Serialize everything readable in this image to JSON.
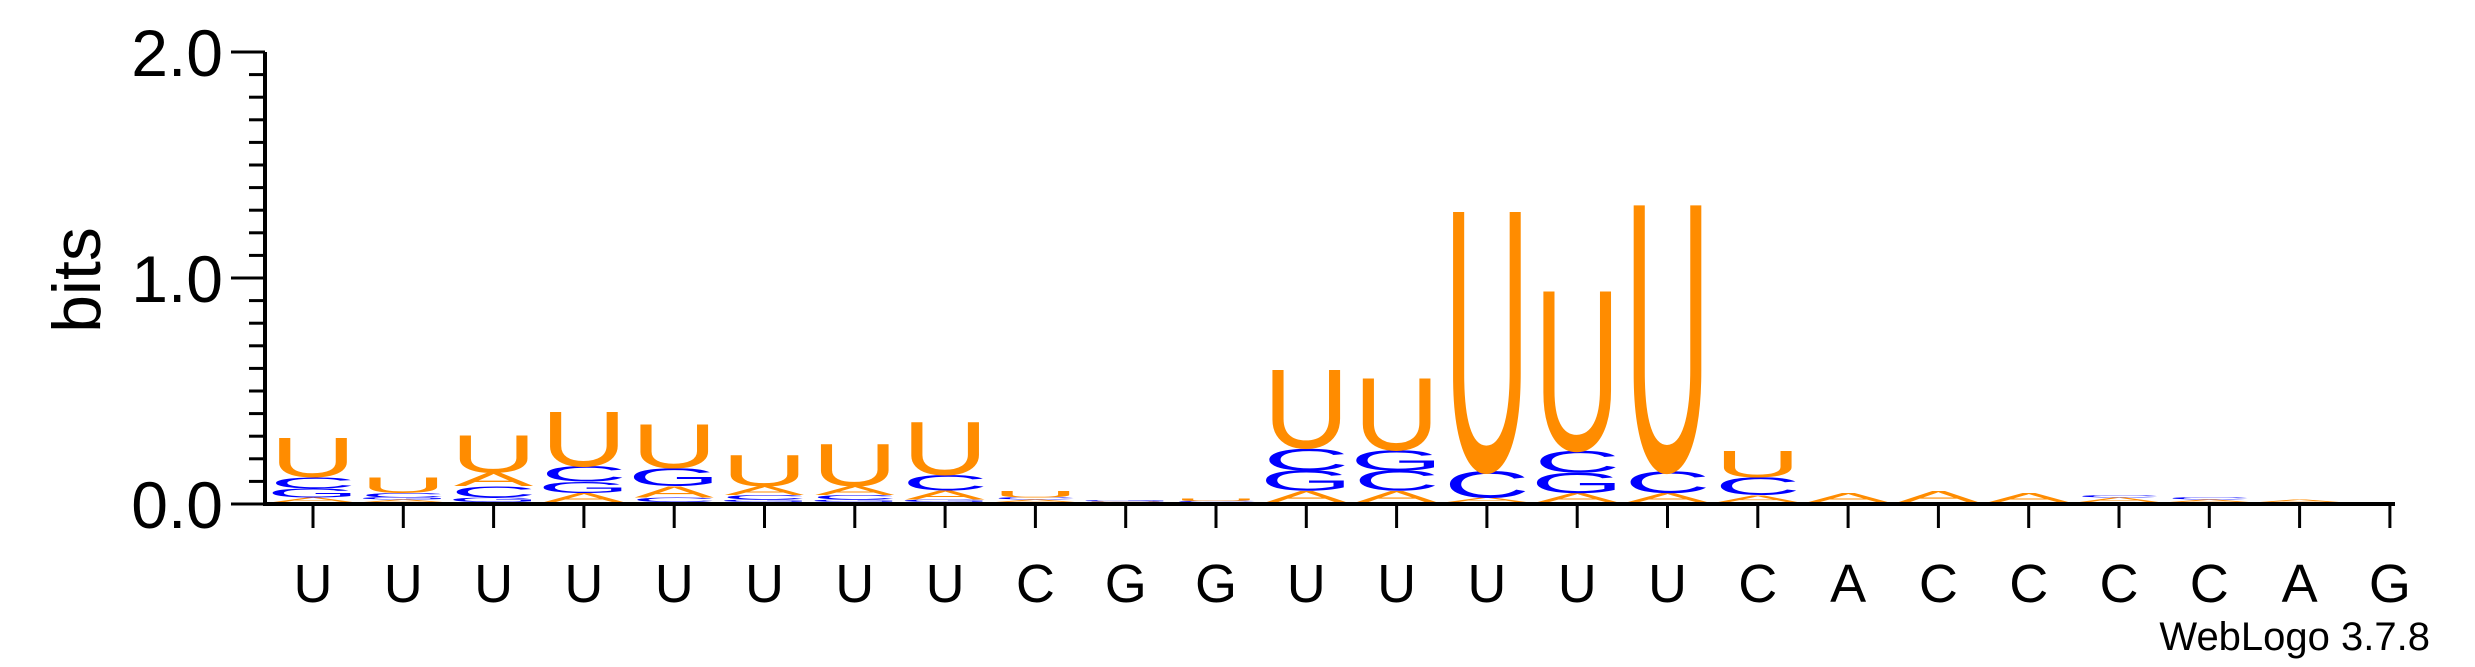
{
  "chart_data": {
    "type": "sequence-logo",
    "ylabel": "bits",
    "ylim": [
      0,
      2.0
    ],
    "yticks": [
      "0.0",
      "1.0",
      "2.0"
    ],
    "xticks": [
      "U",
      "U",
      "U",
      "U",
      "U",
      "U",
      "U",
      "U",
      "C",
      "G",
      "G",
      "U",
      "U",
      "U",
      "U",
      "U",
      "C",
      "A",
      "C",
      "C",
      "C",
      "C",
      "A",
      "G"
    ],
    "footer": "WebLogo 3.7.8",
    "colors": {
      "U": "#ff8c00",
      "C": "#0000ff",
      "G": "#0000ff",
      "A": "#ff8c00"
    },
    "columns": [
      [
        [
          "A",
          0.02
        ],
        [
          "G",
          0.04
        ],
        [
          "C",
          0.05
        ],
        [
          "U",
          0.18
        ]
      ],
      [
        [
          "A",
          0.01
        ],
        [
          "G",
          0.01
        ],
        [
          "C",
          0.02
        ],
        [
          "U",
          0.07
        ]
      ],
      [
        [
          "G",
          0.02
        ],
        [
          "C",
          0.05
        ],
        [
          "A",
          0.06
        ],
        [
          "U",
          0.17
        ]
      ],
      [
        [
          "A",
          0.04
        ],
        [
          "G",
          0.05
        ],
        [
          "C",
          0.07
        ],
        [
          "U",
          0.25
        ]
      ],
      [
        [
          "C",
          0.02
        ],
        [
          "A",
          0.05
        ],
        [
          "G",
          0.08
        ],
        [
          "U",
          0.2
        ]
      ],
      [
        [
          "G",
          0.01
        ],
        [
          "C",
          0.02
        ],
        [
          "A",
          0.04
        ],
        [
          "U",
          0.14
        ]
      ],
      [
        [
          "G",
          0.01
        ],
        [
          "C",
          0.02
        ],
        [
          "A",
          0.04
        ],
        [
          "U",
          0.19
        ]
      ],
      [
        [
          "G",
          0.01
        ],
        [
          "A",
          0.04
        ],
        [
          "C",
          0.07
        ],
        [
          "U",
          0.24
        ]
      ],
      [
        [
          "A",
          0.01
        ],
        [
          "C",
          0.01
        ],
        [
          "U",
          0.03
        ]
      ],
      [
        [
          "U",
          0.003
        ],
        [
          "G",
          0.005
        ]
      ],
      [
        [
          "C",
          0.005
        ],
        [
          "U",
          0.01
        ]
      ],
      [
        [
          "A",
          0.05
        ],
        [
          "G",
          0.09
        ],
        [
          "C",
          0.1
        ],
        [
          "U",
          0.36
        ]
      ],
      [
        [
          "A",
          0.05
        ],
        [
          "C",
          0.09
        ],
        [
          "G",
          0.09
        ],
        [
          "U",
          0.33
        ]
      ],
      [
        [
          "A",
          0.02
        ],
        [
          "C",
          0.12
        ],
        [
          "U",
          1.19
        ]
      ],
      [
        [
          "A",
          0.04
        ],
        [
          "G",
          0.09
        ],
        [
          "C",
          0.1
        ],
        [
          "U",
          0.73
        ]
      ],
      [
        [
          "A",
          0.04
        ],
        [
          "C",
          0.1
        ],
        [
          "U",
          1.22
        ]
      ],
      [
        [
          "A",
          0.03
        ],
        [
          "C",
          0.08
        ],
        [
          "U",
          0.12
        ]
      ],
      [
        [
          "A",
          0.04
        ]
      ],
      [
        [
          "A",
          0.05
        ]
      ],
      [
        [
          "A",
          0.04
        ]
      ],
      [
        [
          "A",
          0.02
        ],
        [
          "C",
          0.01
        ]
      ],
      [
        [
          "A",
          0.01
        ],
        [
          "C",
          0.01
        ]
      ],
      [
        [
          "A",
          0.01
        ]
      ],
      []
    ]
  }
}
